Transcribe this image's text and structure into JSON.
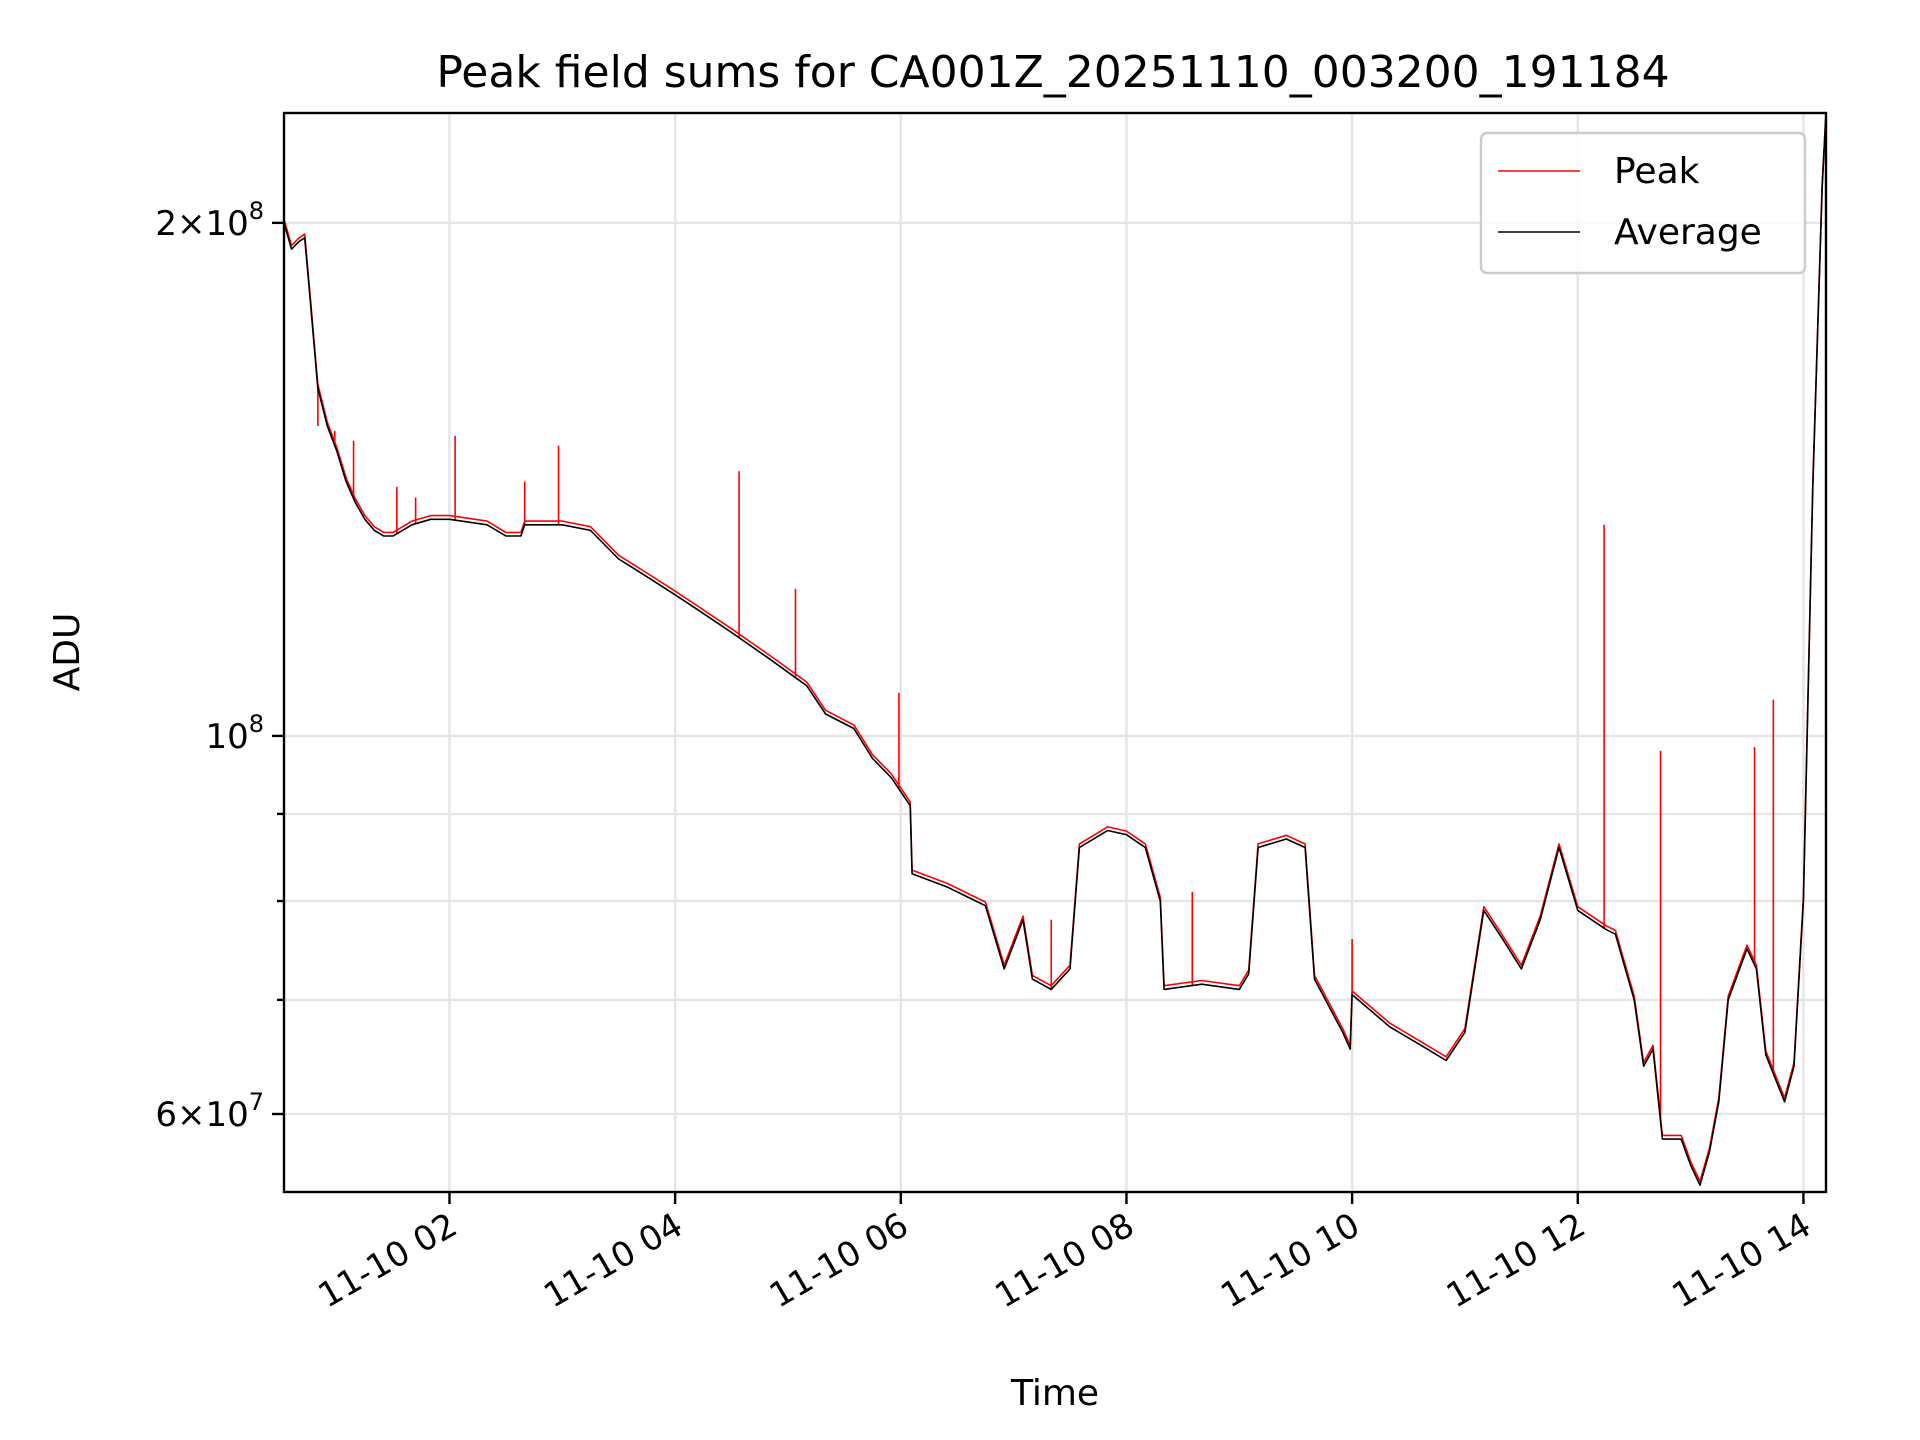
{
  "chart_data": {
    "type": "line",
    "title": "Peak field sums for CA001Z_20251110_003200_191184",
    "xlabel": "Time",
    "ylabel": "ADU",
    "y_scale": "log",
    "ylim": [
      54000000,
      232000000
    ],
    "xlim": [
      "2025-11-10 00:32",
      "2025-11-10 14:12"
    ],
    "grid": true,
    "legend_position": "top-right",
    "x_tick_labels": [
      "11-10 02",
      "11-10 04",
      "11-10 06",
      "11-10 08",
      "11-10 10",
      "11-10 12",
      "11-10 14"
    ],
    "x_tick_values": [
      "2025-11-10 02:00",
      "2025-11-10 04:00",
      "2025-11-10 06:00",
      "2025-11-10 08:00",
      "2025-11-10 10:00",
      "2025-11-10 12:00",
      "2025-11-10 14:00"
    ],
    "y_tick_labels": [
      {
        "value": 60000000,
        "mantissa": "6",
        "times": "×",
        "base": "10",
        "exp": "7"
      },
      {
        "value": 100000000,
        "mantissa": "",
        "times": "",
        "base": "10",
        "exp": "8"
      },
      {
        "value": 200000000,
        "mantissa": "2",
        "times": "×",
        "base": "10",
        "exp": "8"
      }
    ],
    "y_minor_ticks": [
      70000000,
      80000000,
      90000000
    ],
    "series": [
      {
        "name": "Average",
        "color": "#000000",
        "points": [
          [
            "2025-11-10 00:32",
            200000000
          ],
          [
            "2025-11-10 00:36",
            193000000
          ],
          [
            "2025-11-10 00:40",
            195000000
          ],
          [
            "2025-11-10 00:43",
            196000000
          ],
          [
            "2025-11-10 00:46",
            180000000
          ],
          [
            "2025-11-10 00:50",
            160000000
          ],
          [
            "2025-11-10 00:55",
            152000000
          ],
          [
            "2025-11-10 01:00",
            147000000
          ],
          [
            "2025-11-10 01:05",
            141000000
          ],
          [
            "2025-11-10 01:10",
            137000000
          ],
          [
            "2025-11-10 01:15",
            134000000
          ],
          [
            "2025-11-10 01:20",
            132000000
          ],
          [
            "2025-11-10 01:25",
            131000000
          ],
          [
            "2025-11-10 01:30",
            131000000
          ],
          [
            "2025-11-10 01:40",
            133000000
          ],
          [
            "2025-11-10 01:50",
            134000000
          ],
          [
            "2025-11-10 02:00",
            134000000
          ],
          [
            "2025-11-10 02:20",
            133000000
          ],
          [
            "2025-11-10 02:30",
            131000000
          ],
          [
            "2025-11-10 02:38",
            131000000
          ],
          [
            "2025-11-10 02:40",
            133000000
          ],
          [
            "2025-11-10 03:00",
            133000000
          ],
          [
            "2025-11-10 03:15",
            132000000
          ],
          [
            "2025-11-10 03:30",
            127000000
          ],
          [
            "2025-11-10 03:45",
            124000000
          ],
          [
            "2025-11-10 04:00",
            121000000
          ],
          [
            "2025-11-10 04:10",
            119000000
          ],
          [
            "2025-11-10 04:30",
            115000000
          ],
          [
            "2025-11-10 04:50",
            111000000
          ],
          [
            "2025-11-10 05:10",
            107000000
          ],
          [
            "2025-11-10 05:20",
            103000000
          ],
          [
            "2025-11-10 05:35",
            101000000
          ],
          [
            "2025-11-10 05:45",
            97000000
          ],
          [
            "2025-11-10 05:55",
            94500000
          ],
          [
            "2025-11-10 06:05",
            91000000
          ],
          [
            "2025-11-10 06:06",
            83000000
          ],
          [
            "2025-11-10 06:25",
            81500000
          ],
          [
            "2025-11-10 06:35",
            80500000
          ],
          [
            "2025-11-10 06:45",
            79500000
          ],
          [
            "2025-11-10 06:55",
            73000000
          ],
          [
            "2025-11-10 07:05",
            78000000
          ],
          [
            "2025-11-10 07:10",
            72000000
          ],
          [
            "2025-11-10 07:20",
            71000000
          ],
          [
            "2025-11-10 07:30",
            73000000
          ],
          [
            "2025-11-10 07:35",
            86000000
          ],
          [
            "2025-11-10 07:50",
            88000000
          ],
          [
            "2025-11-10 08:00",
            87500000
          ],
          [
            "2025-11-10 08:10",
            86000000
          ],
          [
            "2025-11-10 08:18",
            80000000
          ],
          [
            "2025-11-10 08:20",
            71000000
          ],
          [
            "2025-11-10 08:40",
            71500000
          ],
          [
            "2025-11-10 09:00",
            71000000
          ],
          [
            "2025-11-10 09:05",
            72500000
          ],
          [
            "2025-11-10 09:10",
            86000000
          ],
          [
            "2025-11-10 09:25",
            87000000
          ],
          [
            "2025-11-10 09:35",
            86000000
          ],
          [
            "2025-11-10 09:40",
            72000000
          ],
          [
            "2025-11-10 09:55",
            67000000
          ],
          [
            "2025-11-10 09:59",
            65500000
          ],
          [
            "2025-11-10 10:00",
            70500000
          ],
          [
            "2025-11-10 10:20",
            67500000
          ],
          [
            "2025-11-10 10:40",
            65500000
          ],
          [
            "2025-11-10 10:50",
            64500000
          ],
          [
            "2025-11-10 11:00",
            67000000
          ],
          [
            "2025-11-10 11:10",
            79000000
          ],
          [
            "2025-11-10 11:20",
            76000000
          ],
          [
            "2025-11-10 11:30",
            73000000
          ],
          [
            "2025-11-10 11:40",
            78000000
          ],
          [
            "2025-11-10 11:50",
            86000000
          ],
          [
            "2025-11-10 12:00",
            79000000
          ],
          [
            "2025-11-10 12:15",
            77000000
          ],
          [
            "2025-11-10 12:20",
            76500000
          ],
          [
            "2025-11-10 12:30",
            70000000
          ],
          [
            "2025-11-10 12:35",
            64000000
          ],
          [
            "2025-11-10 12:40",
            65500000
          ],
          [
            "2025-11-10 12:45",
            58000000
          ],
          [
            "2025-11-10 12:55",
            58000000
          ],
          [
            "2025-11-10 13:00",
            56000000
          ],
          [
            "2025-11-10 13:05",
            54500000
          ],
          [
            "2025-11-10 13:10",
            57000000
          ],
          [
            "2025-11-10 13:15",
            61000000
          ],
          [
            "2025-11-10 13:20",
            70000000
          ],
          [
            "2025-11-10 13:30",
            75000000
          ],
          [
            "2025-11-10 13:35",
            73000000
          ],
          [
            "2025-11-10 13:40",
            65000000
          ],
          [
            "2025-11-10 13:50",
            61000000
          ],
          [
            "2025-11-10 13:55",
            64000000
          ],
          [
            "2025-11-10 14:00",
            80000000
          ],
          [
            "2025-11-10 14:05",
            140000000
          ],
          [
            "2025-11-10 14:10",
            210000000
          ],
          [
            "2025-11-10 14:12",
            232000000
          ]
        ]
      },
      {
        "name": "Peak",
        "color": "#ff0000",
        "offset": 1.005,
        "spikes": [
          [
            "2025-11-10 00:50",
            152000000
          ],
          [
            "2025-11-10 00:59",
            151000000
          ],
          [
            "2025-11-10 01:09",
            149000000
          ],
          [
            "2025-11-10 01:32",
            140000000
          ],
          [
            "2025-11-10 01:42",
            138000000
          ],
          [
            "2025-11-10 02:03",
            150000000
          ],
          [
            "2025-11-10 02:40",
            141000000
          ],
          [
            "2025-11-10 02:58",
            148000000
          ],
          [
            "2025-11-10 04:34",
            143000000
          ],
          [
            "2025-11-10 05:04",
            122000000
          ],
          [
            "2025-11-10 05:59",
            106000000
          ],
          [
            "2025-11-10 07:20",
            78000000
          ],
          [
            "2025-11-10 08:35",
            81000000
          ],
          [
            "2025-11-10 10:00",
            76000000
          ],
          [
            "2025-11-10 12:14",
            133000000
          ],
          [
            "2025-11-10 12:44",
            98000000
          ],
          [
            "2025-11-10 13:34",
            98500000
          ],
          [
            "2025-11-10 13:44",
            105000000
          ]
        ]
      }
    ]
  }
}
